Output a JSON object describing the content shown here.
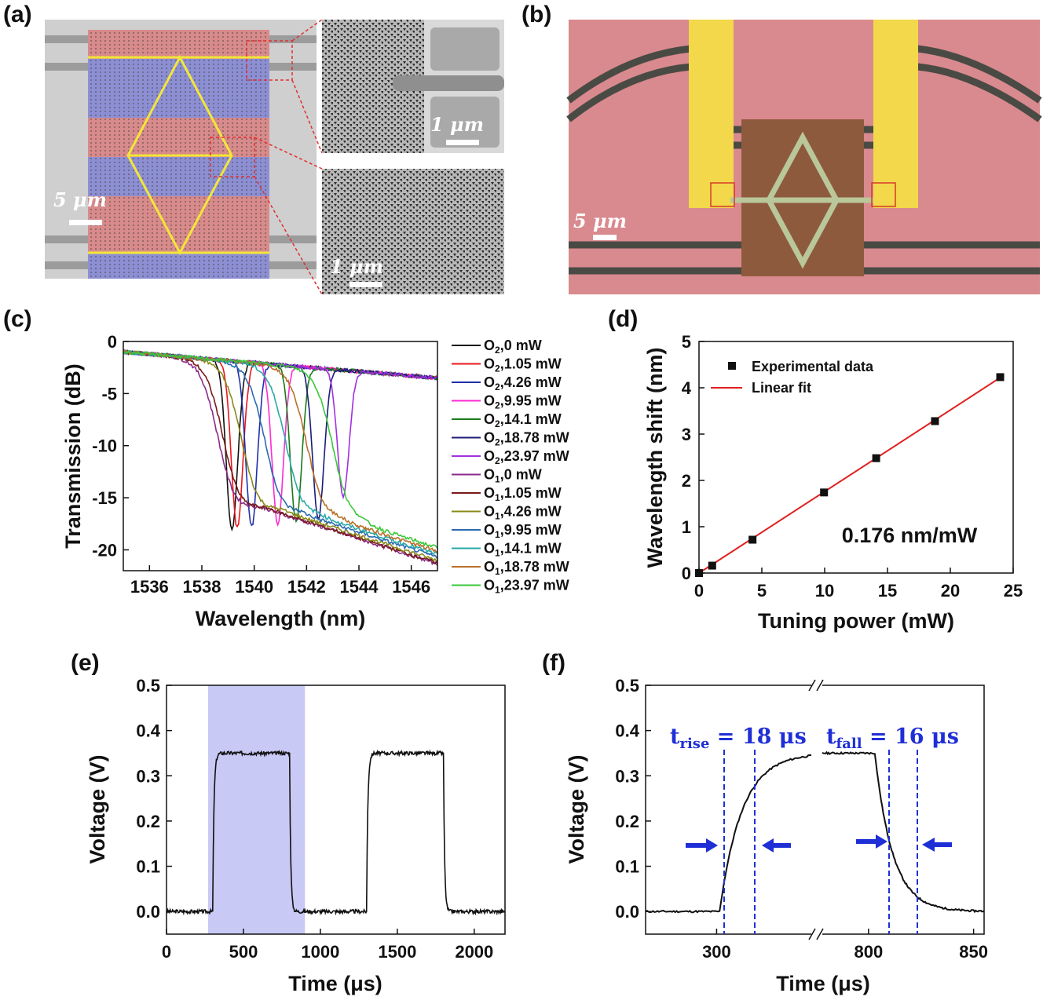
{
  "panels": {
    "a": "(a)",
    "b": "(b)",
    "c": "(c)",
    "d": "(d)",
    "e": "(e)",
    "f": "(f)"
  },
  "images": {
    "a_scale_main": "5 μm",
    "a_scale_top": "1 μm",
    "a_scale_bottom": "1 μm",
    "b_scale": "5 μm"
  },
  "colors": {
    "red_region": "#d98a8a",
    "blue_region": "#8d8fd4",
    "highlight": "#f3e63a",
    "gold": "#f2d84a",
    "substrate": "#d98a8e",
    "heater": "#8e5a3e",
    "shade": "#c9c9f5",
    "annotation": "#1f2fd6",
    "fit": "#e02020"
  },
  "chart_data": [
    {
      "panel": "(c)",
      "type": "line",
      "xlabel": "Wavelength (nm)",
      "ylabel": "Transmission (dB)",
      "xlim": [
        1535,
        1547
      ],
      "ylim": [
        -22,
        0
      ],
      "xticks": [
        "1536",
        "1538",
        "1540",
        "1542",
        "1544",
        "1546"
      ],
      "yticks": [
        "0",
        "-5",
        "-10",
        "-15",
        "-20"
      ],
      "series": [
        {
          "name": "O2,0 mW",
          "sub": "2",
          "power": "0 mW",
          "color": "#111111",
          "kind": "O2",
          "center": 1539.15,
          "depth": -18.0
        },
        {
          "name": "O2,1.05 mW",
          "sub": "2",
          "power": "1.05 mW",
          "color": "#e8161b",
          "kind": "O2",
          "center": 1539.35,
          "depth": -17.8
        },
        {
          "name": "O2,4.26 mW",
          "sub": "2",
          "power": "4.26 mW",
          "color": "#1f2fa8",
          "kind": "O2",
          "center": 1539.9,
          "depth": -17.8
        },
        {
          "name": "O2,9.95 mW",
          "sub": "2",
          "power": "9.95 mW",
          "color": "#ff2ad4",
          "kind": "O2",
          "center": 1540.9,
          "depth": -17.5
        },
        {
          "name": "O2,14.1 mW",
          "sub": "2",
          "power": "14.1 mW",
          "color": "#1a7a1a",
          "kind": "O2",
          "center": 1541.6,
          "depth": -17.3
        },
        {
          "name": "O2,18.78 mW",
          "sub": "2",
          "power": "18.78 mW",
          "color": "#1b1b7a",
          "kind": "O2",
          "center": 1542.45,
          "depth": -17.0
        },
        {
          "name": "O2,23.97 mW",
          "sub": "2",
          "power": "23.97 mW",
          "color": "#a030e0",
          "kind": "O2",
          "center": 1543.4,
          "depth": -15.0
        },
        {
          "name": "O1,0 mW",
          "sub": "1",
          "power": "0 mW",
          "color": "#8a2a8a",
          "kind": "O1",
          "center": 1538.6,
          "depth": -14.0
        },
        {
          "name": "O1,1.05 mW",
          "sub": "1",
          "power": "1.05 mW",
          "color": "#7a1a1a",
          "kind": "O1",
          "center": 1538.8,
          "depth": -14.2
        },
        {
          "name": "O1,4.26 mW",
          "sub": "1",
          "power": "4.26 mW",
          "color": "#8a8a1a",
          "kind": "O1",
          "center": 1539.5,
          "depth": -14.5
        },
        {
          "name": "O1,9.95 mW",
          "sub": "1",
          "power": "9.95 mW",
          "color": "#2a6ab0",
          "kind": "O1",
          "center": 1540.4,
          "depth": -15.0
        },
        {
          "name": "O1,14.1 mW",
          "sub": "1",
          "power": "14.1 mW",
          "color": "#2aa8a8",
          "kind": "O1",
          "center": 1541.2,
          "depth": -15.3
        },
        {
          "name": "O1,18.78 mW",
          "sub": "1",
          "power": "18.78 mW",
          "color": "#b8702a",
          "kind": "O1",
          "center": 1542.0,
          "depth": -15.6
        },
        {
          "name": "O1,23.97 mW",
          "sub": "1",
          "power": "23.97 mW",
          "color": "#3ac83a",
          "kind": "O1",
          "center": 1543.0,
          "depth": -15.8
        }
      ]
    },
    {
      "panel": "(d)",
      "type": "scatter",
      "xlabel": "Tuning power (mW)",
      "ylabel": "Wavelength shift (nm)",
      "xlim": [
        0,
        25
      ],
      "ylim": [
        0,
        5
      ],
      "xticks": [
        "0",
        "5",
        "10",
        "15",
        "20",
        "25"
      ],
      "yticks": [
        "0",
        "1",
        "2",
        "3",
        "4",
        "5"
      ],
      "legend": [
        "Experimental data",
        "Linear fit"
      ],
      "annotation": "0.176 nm/mW",
      "x": [
        0,
        1.05,
        4.26,
        9.95,
        14.1,
        18.78,
        23.97
      ],
      "y": [
        0,
        0.16,
        0.72,
        1.74,
        2.48,
        3.28,
        4.23
      ],
      "fit": {
        "slope": 0.176,
        "intercept": 0
      }
    },
    {
      "panel": "(e)",
      "type": "line",
      "xlabel": "Time (μs)",
      "ylabel": "Voltage (V)",
      "xlim": [
        0,
        2200
      ],
      "ylim": [
        -0.05,
        0.5
      ],
      "xticks": [
        "0",
        "500",
        "1000",
        "1500",
        "2000"
      ],
      "yticks": [
        "0.0",
        "0.1",
        "0.2",
        "0.3",
        "0.4",
        "0.5"
      ],
      "shaded_range": [
        270,
        900
      ],
      "pulses": [
        {
          "rise": 300,
          "fall": 800
        },
        {
          "rise": 1300,
          "fall": 1800
        }
      ],
      "high": 0.35,
      "low": 0.0
    },
    {
      "panel": "(f)",
      "type": "line",
      "xlabel": "Time (μs)",
      "ylabel": "Voltage (V)",
      "ylim": [
        -0.05,
        0.5
      ],
      "xticks": [
        "300",
        "800",
        "850"
      ],
      "yticks": [
        "0.0",
        "0.1",
        "0.2",
        "0.3",
        "0.4",
        "0.5"
      ],
      "t_rise_label": "t",
      "t_rise_sub": "rise",
      "t_rise_value": " = 18 μs",
      "t_fall_label": "t",
      "t_fall_sub": "fall",
      "t_fall_value": " = 16 μs",
      "rise_markers": [
        301,
        319
      ],
      "fall_markers": [
        803,
        819
      ]
    }
  ]
}
